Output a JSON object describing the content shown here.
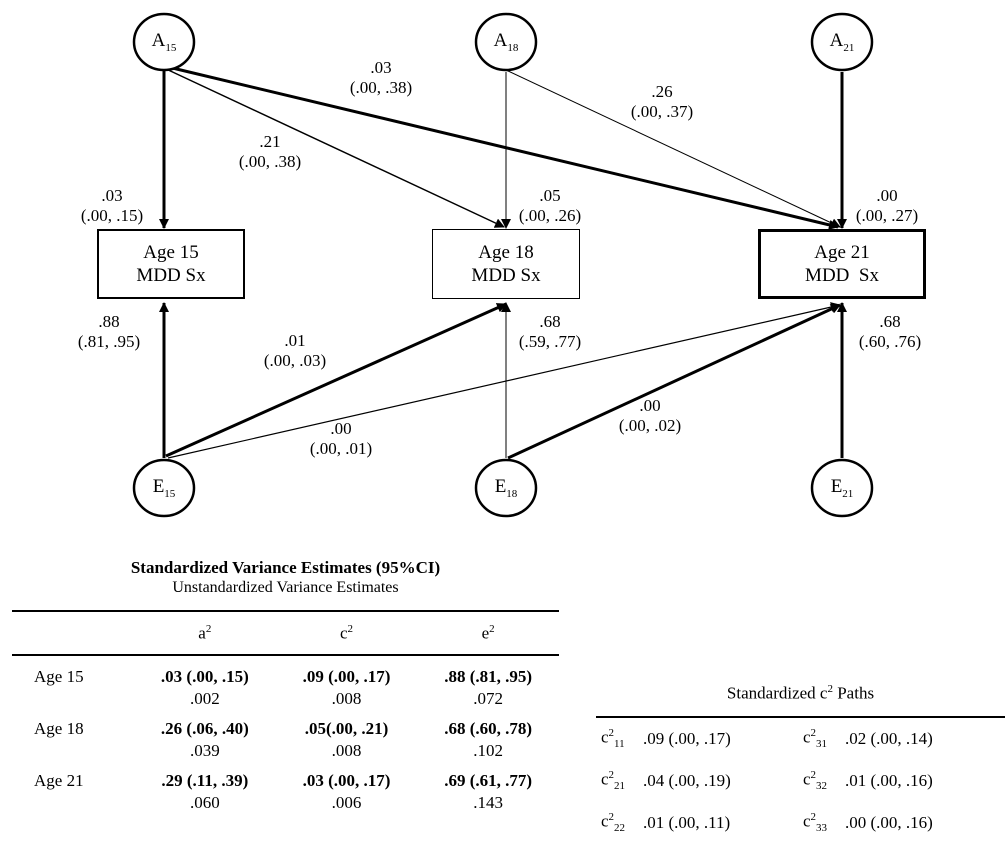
{
  "diagram": {
    "nodes": {
      "A15": {
        "letter": "A",
        "sub": "15"
      },
      "A18": {
        "letter": "A",
        "sub": "18"
      },
      "A21": {
        "letter": "A",
        "sub": "21"
      },
      "E15": {
        "letter": "E",
        "sub": "15"
      },
      "E18": {
        "letter": "E",
        "sub": "18"
      },
      "E21": {
        "letter": "E",
        "sub": "21"
      }
    },
    "boxes": {
      "age15": {
        "line1": "Age 15",
        "line2": "MDD Sx"
      },
      "age18": {
        "line1": "Age 18",
        "line2": "MDD Sx"
      },
      "age21": {
        "line1": "Age 21",
        "line2": "MDD  Sx"
      }
    },
    "path_labels": {
      "a15_21": {
        "est": ".03",
        "ci": "(.00, .38)"
      },
      "a18_21": {
        "est": ".26",
        "ci": "(.00, .37)"
      },
      "a15_18": {
        "est": ".21",
        "ci": "(.00, .38)"
      },
      "a15_15": {
        "est": ".03",
        "ci": "(.00, .15)"
      },
      "a18_18": {
        "est": ".05",
        "ci": "(.00, .26)"
      },
      "a21_21": {
        "est": ".00",
        "ci": "(.00, .27)"
      },
      "e15_15": {
        "est": ".88",
        "ci": "(.81, .95)"
      },
      "e15_18": {
        "est": ".01",
        "ci": "(.00, .03)"
      },
      "e18_18": {
        "est": ".68",
        "ci": "(.59, .77)"
      },
      "e21_21": {
        "est": ".68",
        "ci": "(.60, .76)"
      },
      "e15_21": {
        "est": ".00",
        "ci": "(.00, .01)"
      },
      "e18_21": {
        "est": ".00",
        "ci": "(.00, .02)"
      }
    }
  },
  "variance_table": {
    "title": "Standardized Variance Estimates (95%CI)",
    "subtitle": "Unstandardized Variance Estimates",
    "columns": [
      {
        "base": "a",
        "sup": "2"
      },
      {
        "base": "c",
        "sup": "2"
      },
      {
        "base": "e",
        "sup": "2"
      }
    ],
    "rows": [
      {
        "label": "Age 15",
        "std": [
          ".03 (.00, .15)",
          ".09 (.00, .17)",
          ".88 (.81, .95)"
        ],
        "unstd": [
          ".002",
          ".008",
          ".072"
        ]
      },
      {
        "label": "Age 18",
        "std": [
          ".26 (.06, .40)",
          ".05(.00, .21)",
          ".68 (.60, .78)"
        ],
        "unstd": [
          ".039",
          ".008",
          ".102"
        ]
      },
      {
        "label": "Age 21",
        "std": [
          ".29 (.11, .39)",
          ".03 (.00, .17)",
          ".69 (.61, .77)"
        ],
        "unstd": [
          ".060",
          ".006",
          ".143"
        ]
      }
    ]
  },
  "c2_table": {
    "title_pre": "Standardized c",
    "title_sup": "2",
    "title_post": " Paths",
    "rows": [
      [
        {
          "base": "c",
          "sup": "2",
          "sub": "11",
          "value": ".09 (.00, .17)"
        },
        {
          "base": "c",
          "sup": "2",
          "sub": "31",
          "value": ".02 (.00, .14)"
        }
      ],
      [
        {
          "base": "c",
          "sup": "2",
          "sub": "21",
          "value": ".04 (.00, .19)"
        },
        {
          "base": "c",
          "sup": "2",
          "sub": "32",
          "value": ".01 (.00, .16)"
        }
      ],
      [
        {
          "base": "c",
          "sup": "2",
          "sub": "22",
          "value": ".01 (.00, .11)"
        },
        {
          "base": "c",
          "sup": "2",
          "sub": "33",
          "value": ".00 (.00, .16)"
        }
      ]
    ]
  }
}
